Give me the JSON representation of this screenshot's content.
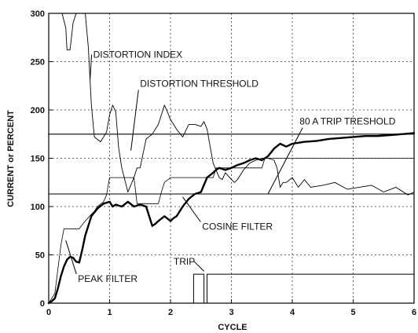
{
  "chart_data": {
    "type": "line",
    "title": "",
    "xlabel": "CYCLE",
    "ylabel": "CURRENT or PERCENT",
    "xlim": [
      0,
      6
    ],
    "ylim": [
      0,
      300
    ],
    "xticks": [
      0,
      1,
      2,
      3,
      4,
      5,
      6
    ],
    "yticks": [
      0,
      50,
      100,
      150,
      200,
      250,
      300
    ],
    "grid": true,
    "series": [
      {
        "name": "DISTORTION INDEX",
        "x": [
          0.15,
          0.22,
          0.28,
          0.3,
          0.35,
          0.4,
          0.45,
          0.5,
          0.55,
          0.6,
          0.65,
          0.7,
          0.75,
          0.85,
          0.95,
          1.0,
          1.05,
          1.1,
          1.15,
          1.2,
          1.3,
          1.4,
          1.45,
          1.5,
          1.6,
          1.7,
          1.8,
          1.9,
          1.95,
          2.0,
          2.1,
          2.2,
          2.3,
          2.4,
          2.5,
          2.55,
          2.6,
          2.7,
          2.8,
          2.85,
          2.9,
          3.0,
          3.05,
          3.1,
          3.2,
          3.3,
          3.4,
          3.5,
          3.6,
          3.7,
          3.75,
          3.8,
          3.85,
          3.9,
          4.0,
          4.1,
          4.2,
          4.3,
          4.5,
          4.7,
          4.9,
          5.1,
          5.3,
          5.5,
          5.7,
          5.9,
          6.0
        ],
        "values": [
          300,
          300,
          285,
          262,
          262,
          290,
          300,
          300,
          300,
          300,
          265,
          205,
          172,
          167,
          177,
          195,
          205,
          198,
          160,
          140,
          115,
          130,
          140,
          140,
          170,
          175,
          185,
          205,
          198,
          190,
          180,
          172,
          185,
          185,
          183,
          188,
          180,
          145,
          130,
          128,
          135,
          128,
          125,
          128,
          138,
          145,
          148,
          150,
          150,
          148,
          140,
          120,
          125,
          125,
          130,
          120,
          128,
          120,
          122,
          125,
          118,
          120,
          122,
          115,
          120,
          112,
          115
        ]
      },
      {
        "name": "DISTORTION THRESHOLD",
        "x": [
          0,
          6
        ],
        "values": [
          175,
          175
        ]
      },
      {
        "name": "80 A TRIP TRESHOLD",
        "x": [
          0,
          6
        ],
        "values": [
          113,
          113
        ]
      },
      {
        "name": "COSINE FILTER",
        "x": [
          0,
          0.1,
          0.2,
          0.25,
          0.5,
          0.6,
          0.7,
          0.75,
          0.8,
          0.9,
          0.95,
          1.0,
          1.4,
          1.45,
          1.8,
          1.85,
          1.9,
          2.0,
          2.7,
          2.75,
          3.5,
          3.55,
          6.0
        ],
        "values": [
          0,
          10,
          60,
          77,
          77,
          85,
          92,
          95,
          100,
          105,
          112,
          130,
          130,
          103,
          103,
          115,
          125,
          130,
          130,
          140,
          140,
          150,
          150
        ]
      },
      {
        "name": "PEAK FILTER",
        "x": [
          0,
          0.05,
          0.1,
          0.15,
          0.2,
          0.25,
          0.3,
          0.35,
          0.4,
          0.45,
          0.5,
          0.55,
          0.6,
          0.7,
          0.8,
          0.9,
          1.0,
          1.05,
          1.1,
          1.2,
          1.3,
          1.4,
          1.5,
          1.6,
          1.7,
          1.75,
          1.8,
          1.9,
          2.0,
          2.05,
          2.1,
          2.2,
          2.3,
          2.4,
          2.5,
          2.6,
          2.7,
          2.75,
          2.8,
          2.9,
          3.0,
          3.1,
          3.2,
          3.3,
          3.4,
          3.5,
          3.6,
          3.7,
          3.8,
          3.9,
          4.0,
          4.2,
          4.4,
          4.6,
          4.8,
          5.0,
          5.2,
          5.4,
          5.6,
          5.8,
          6.0
        ],
        "values": [
          0,
          2,
          5,
          15,
          28,
          38,
          45,
          48,
          47,
          43,
          42,
          55,
          70,
          90,
          98,
          103,
          105,
          100,
          102,
          100,
          105,
          100,
          102,
          100,
          80,
          82,
          85,
          90,
          85,
          88,
          90,
          100,
          108,
          113,
          115,
          130,
          135,
          138,
          140,
          138,
          140,
          143,
          145,
          148,
          150,
          148,
          152,
          160,
          165,
          162,
          165,
          167,
          168,
          170,
          171,
          172,
          173,
          173,
          174,
          175,
          176
        ]
      },
      {
        "name": "TRIP",
        "x": [
          0,
          2.38,
          2.38,
          2.55,
          2.55,
          2.6,
          2.6,
          2.65,
          2.65,
          6.0
        ],
        "values": [
          0,
          0,
          30,
          30,
          0,
          0,
          30,
          30,
          30,
          30
        ]
      }
    ],
    "annotations": [
      {
        "text": "DISTORTION INDEX",
        "series": "DISTORTION INDEX",
        "x": 0.73,
        "y": 254,
        "target": [
          0.68,
          232
        ]
      },
      {
        "text": "DISTORTION THRESHOLD",
        "series": "DISTORTION THRESHOLD",
        "x": 1.5,
        "y": 224,
        "target": [
          1.35,
          158
        ]
      },
      {
        "text": "80 A TRIP TRESHOLD",
        "series": "80 A TRIP TRESHOLD",
        "x": 4.12,
        "y": 185,
        "target": [
          3.6,
          113
        ]
      },
      {
        "text": "COSINE FILTER",
        "series": "COSINE FILTER",
        "x": 2.52,
        "y": 76,
        "target": [
          2.2,
          110
        ]
      },
      {
        "text": "PEAK FILTER",
        "series": "PEAK FILTER",
        "x": 0.48,
        "y": 22,
        "target": [
          0.28,
          65
        ]
      },
      {
        "text": "TRIP",
        "series": "TRIP",
        "x": 2.05,
        "y": 40,
        "target": [
          2.55,
          33
        ]
      }
    ]
  }
}
